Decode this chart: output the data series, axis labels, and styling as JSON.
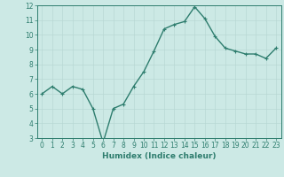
{
  "x": [
    0,
    1,
    2,
    3,
    4,
    5,
    6,
    7,
    8,
    9,
    10,
    11,
    12,
    13,
    14,
    15,
    16,
    17,
    18,
    19,
    20,
    21,
    22,
    23
  ],
  "y": [
    6.0,
    6.5,
    6.0,
    6.5,
    6.3,
    5.0,
    2.7,
    5.0,
    5.3,
    6.5,
    7.5,
    8.9,
    10.4,
    10.7,
    10.9,
    11.9,
    11.1,
    9.9,
    9.1,
    8.9,
    8.7,
    8.7,
    8.4,
    9.1
  ],
  "line_color": "#2e7d6e",
  "marker": "+",
  "marker_size": 3,
  "line_width": 1.0,
  "bg_color": "#cce9e5",
  "grid_color": "#b8d8d4",
  "xlabel": "Humidex (Indice chaleur)",
  "ylim": [
    3,
    12
  ],
  "xlim": [
    -0.5,
    23.5
  ],
  "yticks": [
    3,
    4,
    5,
    6,
    7,
    8,
    9,
    10,
    11,
    12
  ],
  "xticks": [
    0,
    1,
    2,
    3,
    4,
    5,
    6,
    7,
    8,
    9,
    10,
    11,
    12,
    13,
    14,
    15,
    16,
    17,
    18,
    19,
    20,
    21,
    22,
    23
  ],
  "axis_color": "#2e7d6e",
  "tick_color": "#2e7d6e",
  "label_fontsize": 6.5,
  "tick_fontsize": 5.5
}
